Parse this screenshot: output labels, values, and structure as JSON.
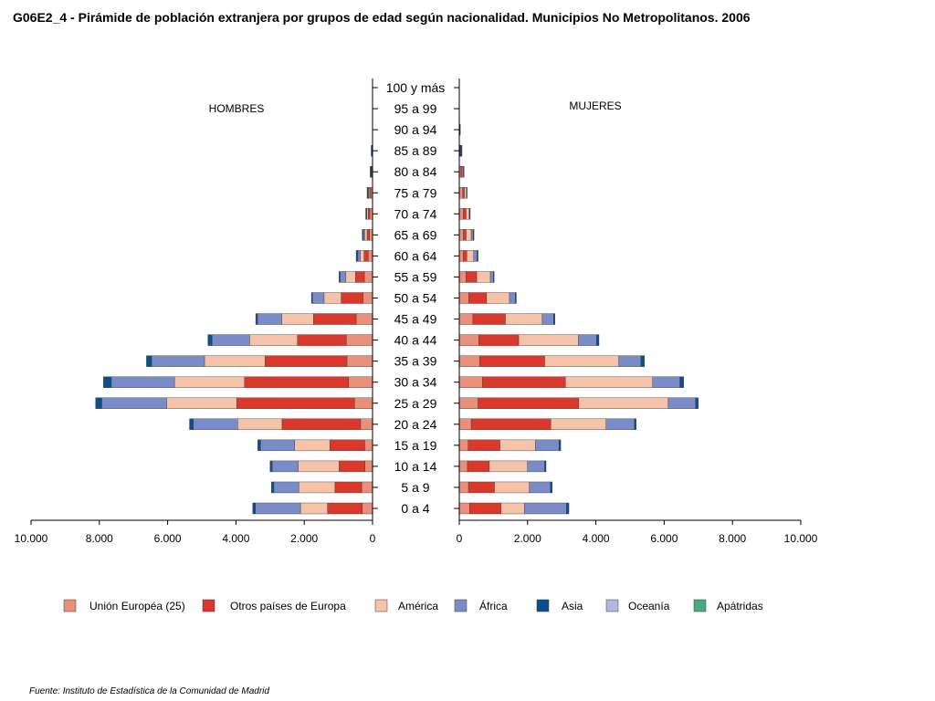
{
  "title": "G06E2_4 - Pirámide de población extranjera por grupos de edad según nacionalidad.  Municipios No Metropolitanos. 2006",
  "source": "Fuente: Instituto de Estadística de la Comunidad de Madrid",
  "chart_data": {
    "type": "bar",
    "orientation": "horizontal-pyramid",
    "stacked": true,
    "title": "G06E2_4 - Pirámide de población extranjera por grupos de edad según nacionalidad.  Municipios No Metropolitanos. 2006",
    "side_labels": {
      "left": "HOMBRES",
      "right": "MUJERES"
    },
    "categories": [
      "0 a 4",
      "5 a 9",
      "10 a 14",
      "15 a 19",
      "20 a 24",
      "25 a 29",
      "30 a 34",
      "35 a 39",
      "40 a  44",
      "45 a 49",
      "50 a 54",
      "55 a 59",
      "60 a 64",
      "65 a 69",
      "70 a 74",
      "75 a 79",
      "80 a 84",
      "85 a 89",
      "90 a 94",
      "95 a 99",
      "100 y más"
    ],
    "xlim": [
      0,
      10000
    ],
    "x_ticks_left": [
      "10.000",
      "8.000",
      "6.000",
      "4.000",
      "2.000",
      "0"
    ],
    "x_ticks_right": [
      "0",
      "2.000",
      "4.000",
      "6.000",
      "8.000",
      "10.000"
    ],
    "x_tick_values": [
      0,
      2000,
      4000,
      6000,
      8000,
      10000
    ],
    "series_names": [
      "Unión Européa (25)",
      "Otros países de Europa",
      "América",
      "África",
      "Asia",
      "Oceanía",
      "Apátridas"
    ],
    "series_colors": [
      "#e8907a",
      "#d9382a",
      "#f5c2aa",
      "#7a8cc8",
      "#0b4f8c",
      "#b0b8e0",
      "#4aa882"
    ],
    "legend_position": "bottom",
    "grid": false,
    "hombres": [
      [
        300,
        1020,
        790,
        1320,
        80,
        0,
        0
      ],
      [
        320,
        780,
        1060,
        730,
        70,
        0,
        0
      ],
      [
        220,
        760,
        1200,
        760,
        60,
        0,
        0
      ],
      [
        230,
        1020,
        1030,
        1000,
        80,
        0,
        0
      ],
      [
        350,
        2300,
        1300,
        1300,
        110,
        0,
        0
      ],
      [
        530,
        3450,
        2050,
        1900,
        180,
        0,
        0
      ],
      [
        700,
        3050,
        2050,
        1850,
        230,
        0,
        0
      ],
      [
        750,
        2400,
        1770,
        1550,
        150,
        0,
        0
      ],
      [
        770,
        1430,
        1400,
        1100,
        120,
        0,
        0
      ],
      [
        480,
        1250,
        930,
        710,
        50,
        0,
        0
      ],
      [
        280,
        640,
        500,
        340,
        30,
        0,
        0
      ],
      [
        240,
        260,
        280,
        170,
        30,
        0,
        0
      ],
      [
        130,
        120,
        110,
        70,
        50,
        0,
        0
      ],
      [
        90,
        70,
        70,
        40,
        30,
        0,
        0
      ],
      [
        80,
        50,
        40,
        10,
        20,
        0,
        0
      ],
      [
        50,
        40,
        30,
        0,
        40,
        0,
        0
      ],
      [
        10,
        20,
        10,
        0,
        30,
        0,
        0
      ],
      [
        10,
        0,
        0,
        0,
        30,
        0,
        0
      ],
      [
        0,
        0,
        0,
        0,
        0,
        0,
        0
      ],
      [
        0,
        0,
        0,
        0,
        0,
        0,
        0
      ],
      [
        0,
        0,
        0,
        0,
        0,
        0,
        0
      ]
    ],
    "mujeres": [
      [
        300,
        920,
        690,
        1230,
        70,
        0,
        0
      ],
      [
        270,
        760,
        1020,
        620,
        50,
        0,
        0
      ],
      [
        240,
        640,
        1120,
        500,
        40,
        0,
        0
      ],
      [
        260,
        930,
        1040,
        690,
        50,
        0,
        0
      ],
      [
        350,
        2330,
        1620,
        830,
        50,
        0,
        0
      ],
      [
        550,
        2950,
        2620,
        800,
        80,
        0,
        0
      ],
      [
        680,
        2430,
        2550,
        800,
        110,
        0,
        0
      ],
      [
        600,
        1900,
        2170,
        650,
        100,
        0,
        0
      ],
      [
        570,
        1170,
        1750,
        530,
        70,
        0,
        0
      ],
      [
        400,
        950,
        1080,
        330,
        40,
        0,
        0
      ],
      [
        280,
        520,
        670,
        170,
        30,
        0,
        0
      ],
      [
        200,
        310,
        400,
        90,
        20,
        0,
        0
      ],
      [
        120,
        100,
        200,
        100,
        30,
        0,
        0
      ],
      [
        120,
        80,
        150,
        60,
        20,
        0,
        0
      ],
      [
        120,
        80,
        90,
        10,
        20,
        0,
        0
      ],
      [
        100,
        50,
        60,
        0,
        20,
        0,
        0
      ],
      [
        50,
        40,
        30,
        0,
        20,
        0,
        0
      ],
      [
        20,
        20,
        10,
        0,
        30,
        0,
        0
      ],
      [
        10,
        10,
        0,
        0,
        10,
        0,
        0
      ],
      [
        0,
        0,
        0,
        0,
        0,
        0,
        0
      ],
      [
        0,
        0,
        0,
        0,
        0,
        0,
        0
      ]
    ]
  }
}
